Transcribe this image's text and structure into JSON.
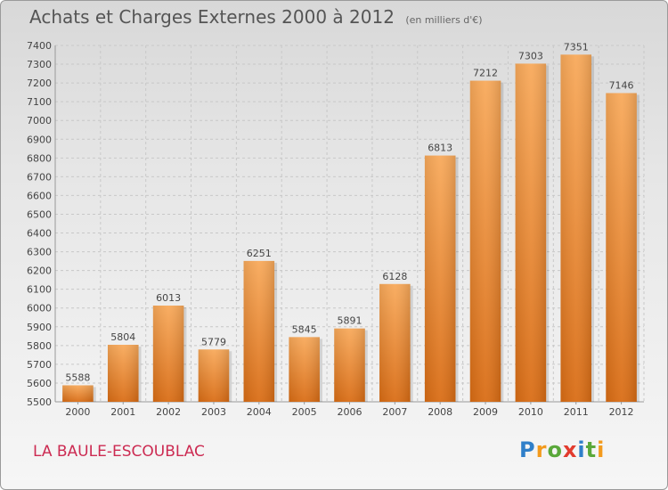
{
  "header": {
    "title": "Achats et Charges Externes 2000 à 2012",
    "subtitle": "(en milliers d'€)"
  },
  "footer": {
    "commune": "LA BAULE-ESCOUBLAC",
    "logo": {
      "letters": [
        "P",
        "r",
        "o",
        "x",
        "i",
        "t",
        "i"
      ],
      "colors": [
        "#2f7fc9",
        "#f39a1c",
        "#5aa83a",
        "#e23b2e",
        "#2f7fc9",
        "#5aa83a",
        "#f39a1c"
      ]
    }
  },
  "chart_data": {
    "type": "bar",
    "categories": [
      "2000",
      "2001",
      "2002",
      "2003",
      "2004",
      "2005",
      "2006",
      "2007",
      "2008",
      "2009",
      "2010",
      "2011",
      "2012"
    ],
    "values": [
      5588,
      5804,
      6013,
      5779,
      6251,
      5845,
      5891,
      6128,
      6813,
      7212,
      7303,
      7351,
      7146
    ],
    "ylim": [
      5500,
      7400
    ],
    "yticks": [
      5500,
      5600,
      5700,
      5800,
      5900,
      6000,
      6100,
      6200,
      6300,
      6400,
      6500,
      6600,
      6700,
      6800,
      6900,
      7000,
      7100,
      7200,
      7300,
      7400
    ],
    "grid": true,
    "bar_color": "#ee8a2c",
    "xlabel": "",
    "ylabel": ""
  }
}
